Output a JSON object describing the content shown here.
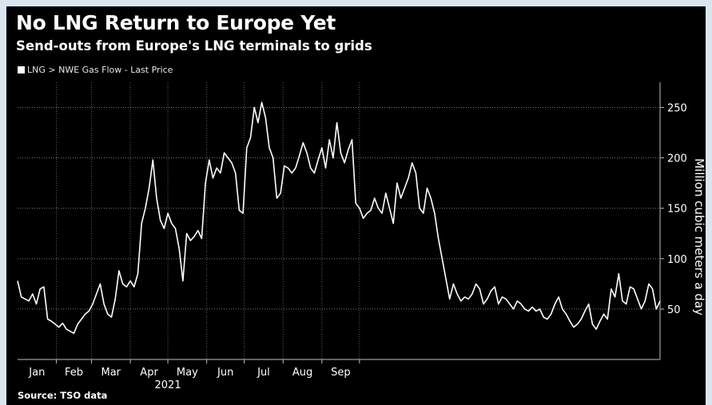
{
  "header": {
    "title": "No LNG Return to Europe Yet",
    "subtitle": "Send-outs from Europe's LNG terminals to grids"
  },
  "legend": {
    "label": "LNG > NWE Gas Flow - Last Price"
  },
  "footer": {
    "source": "Source: TSO data"
  },
  "colors": {
    "background": "#000000",
    "line": "#ffffff",
    "frame": "#d9e6f2"
  },
  "chart_data": {
    "type": "line",
    "title": "No LNG Return to Europe Yet",
    "subtitle": "Send-outs from Europe's LNG terminals to grids",
    "ylabel": "Million cubic meters a day",
    "xlabel": "2021",
    "ylim": [
      0,
      275
    ],
    "y_ticks": [
      50,
      100,
      150,
      200,
      250
    ],
    "y_axis_side": "right",
    "grid": "dotted",
    "months": [
      "Jan",
      "Feb",
      "Mar",
      "Apr",
      "May",
      "Jun",
      "Jul",
      "Aug",
      "Sep"
    ],
    "series": [
      {
        "name": "LNG > NWE Gas Flow - Last Price",
        "x_start": "2021-01-01",
        "x_step_days": 3,
        "values": [
          78,
          62,
          60,
          58,
          65,
          55,
          70,
          72,
          40,
          38,
          35,
          32,
          36,
          30,
          28,
          26,
          35,
          40,
          45,
          48,
          55,
          65,
          75,
          55,
          45,
          42,
          60,
          88,
          75,
          72,
          78,
          72,
          85,
          135,
          150,
          170,
          198,
          160,
          138,
          130,
          145,
          135,
          130,
          110,
          78,
          125,
          118,
          122,
          128,
          120,
          175,
          198,
          180,
          190,
          185,
          205,
          200,
          195,
          185,
          148,
          145,
          210,
          220,
          250,
          235,
          255,
          240,
          210,
          200,
          160,
          165,
          192,
          190,
          185,
          190,
          202,
          215,
          205,
          190,
          185,
          198,
          210,
          190,
          218,
          200,
          235,
          205,
          195,
          208,
          218,
          155,
          150,
          140,
          145,
          148,
          160,
          150,
          145,
          165,
          150,
          135,
          175,
          160,
          170,
          180,
          195,
          185,
          150,
          145,
          170,
          160,
          145,
          120,
          100,
          80,
          60,
          75,
          65,
          58,
          62,
          60,
          65,
          75,
          70,
          55,
          60,
          68,
          72,
          55,
          62,
          60,
          55,
          50,
          58,
          55,
          50,
          48,
          52,
          48,
          50,
          42,
          40,
          45,
          55,
          62,
          50,
          45,
          38,
          32,
          35,
          40,
          48,
          55,
          35,
          30,
          38,
          45,
          40,
          70,
          62,
          85,
          58,
          55,
          72,
          70,
          60,
          50,
          58,
          75,
          70,
          50,
          58
        ]
      }
    ]
  }
}
